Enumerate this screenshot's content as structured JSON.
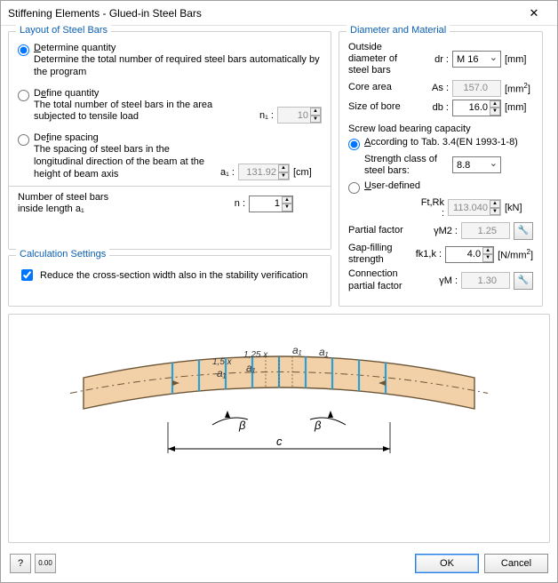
{
  "window": {
    "title": "Stiffening Elements - Glued-in Steel Bars"
  },
  "layout": {
    "legend": "Layout of Steel Bars",
    "opt1": {
      "label": "Determine quantity",
      "desc": "Determine the total number of required steel bars automatically by the program"
    },
    "opt2": {
      "label": "Define quantity",
      "desc": "The total number of steel bars in the area subjected to tensile load",
      "sym": "n₁ :",
      "value": "10"
    },
    "opt3": {
      "label": "Define spacing",
      "desc": "The spacing of steel bars in the longitudinal direction of the beam at the height of beam axis",
      "sym": "a₁ :",
      "value": "131.92",
      "unit": "[cm]"
    },
    "numbars": {
      "label1": "Number of steel bars",
      "label2": "inside length a₁",
      "sym": "n :",
      "value": "1"
    }
  },
  "calc": {
    "legend": "Calculation Settings",
    "reduce": "Reduce the cross-section width also in the stability verification"
  },
  "diam": {
    "legend": "Diameter and Material",
    "outside": {
      "label": "Outside diameter of steel bars",
      "sym": "dr :",
      "value": "M 16",
      "unit": "[mm]"
    },
    "core": {
      "label": "Core area",
      "sym": "As :",
      "value": "157.0",
      "unit": "[mm²]"
    },
    "bore": {
      "label": "Size of bore",
      "sym": "db :",
      "value": "16.0",
      "unit": "[mm]"
    },
    "screw_head": "Screw load bearing capacity",
    "accord": {
      "label": "According to Tab. 3.4(EN 1993-1-8)",
      "strength_label": "Strength class of steel bars:",
      "strength_value": "8.8"
    },
    "userdef": {
      "label": "User-defined",
      "sym": "Ft,Rk :",
      "value": "113.040",
      "unit": "[kN]"
    },
    "partial": {
      "label": "Partial factor",
      "sym": "γM2 :",
      "value": "1.25"
    },
    "gap": {
      "label": "Gap-filling strength",
      "sym": "fk1,k :",
      "value": "4.0",
      "unit": "[N/mm²]"
    },
    "conn": {
      "label": "Connection partial factor",
      "sym": "γM :",
      "value": "1.30"
    }
  },
  "diagram": {
    "labels": {
      "a1": "a₁",
      "a1b": "a₁",
      "a1c": "a₁",
      "a1d": "a₁",
      "f15": "1,5 x",
      "f125": "1,25 x",
      "beta": "β",
      "c": "c"
    },
    "colors": {
      "beam_fill": "#f2d0a8",
      "beam_stroke": "#6b5537",
      "bar": "#2aa0d8",
      "dash": "#6b5537",
      "text": "#333333"
    }
  },
  "footer": {
    "ok": "OK",
    "cancel": "Cancel"
  }
}
